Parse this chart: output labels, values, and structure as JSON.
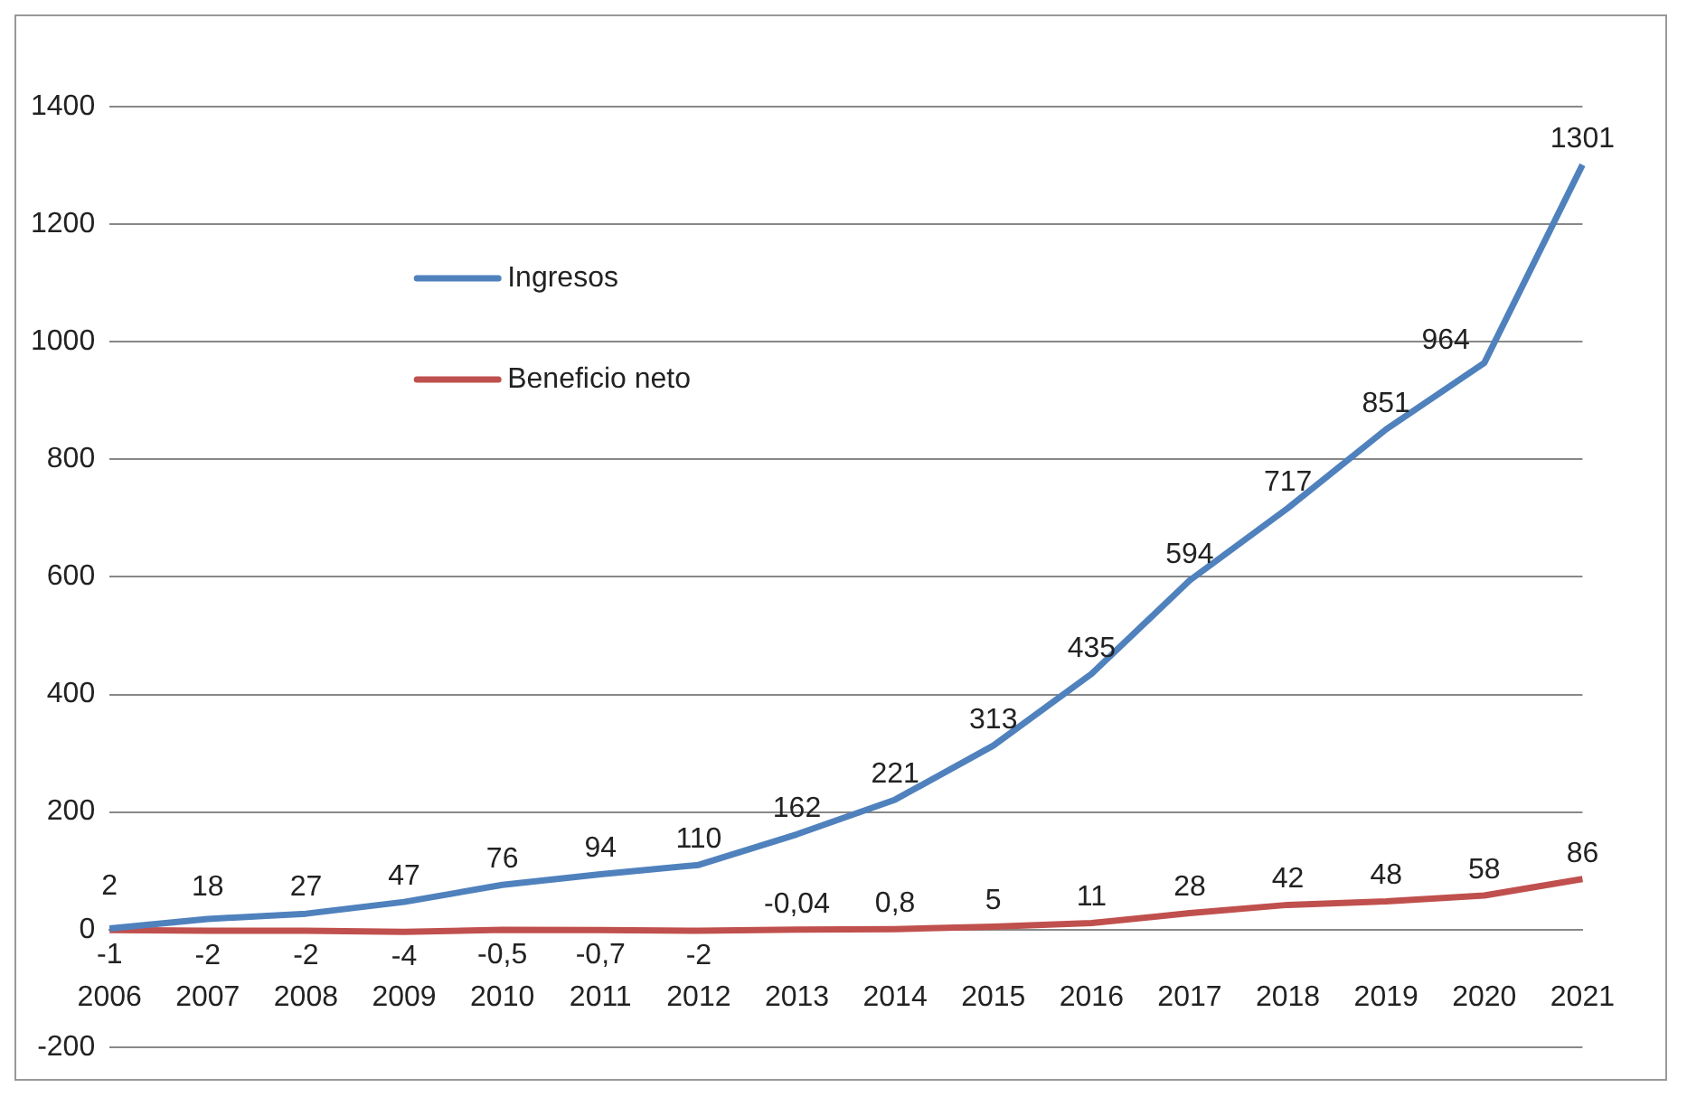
{
  "chart_data": {
    "type": "line",
    "categories": [
      "2006",
      "2007",
      "2008",
      "2009",
      "2010",
      "2011",
      "2012",
      "2013",
      "2014",
      "2015",
      "2016",
      "2017",
      "2018",
      "2019",
      "2020",
      "2021"
    ],
    "series": [
      {
        "name": "Ingresos",
        "color": "#4f81bd",
        "values": [
          2,
          18,
          27,
          47,
          76,
          94,
          110,
          162,
          221,
          313,
          435,
          594,
          717,
          851,
          964,
          1301
        ],
        "value_labels": [
          "2",
          "18",
          "27",
          "47",
          "76",
          "94",
          "110",
          "162",
          "221",
          "313",
          "435",
          "594",
          "717",
          "851",
          "964",
          "1301"
        ]
      },
      {
        "name": "Beneficio neto",
        "color": "#c0504d",
        "values": [
          -1,
          -2,
          -2,
          -4,
          -0.5,
          -0.7,
          -2,
          -0.04,
          0.8,
          5,
          11,
          28,
          42,
          48,
          58,
          86
        ],
        "value_labels": [
          "-1",
          "-2",
          "-2",
          "-4",
          "-0,5",
          "-0,7",
          "-2",
          "-0,04",
          "0,8",
          "5",
          "11",
          "28",
          "42",
          "48",
          "58",
          "86"
        ]
      }
    ],
    "ylim": [
      -200,
      1400
    ],
    "yticks": [
      -200,
      0,
      200,
      400,
      600,
      800,
      1000,
      1200,
      1400
    ],
    "grid": "y",
    "legend": "top left",
    "marker": "none",
    "line_style": "solid"
  }
}
